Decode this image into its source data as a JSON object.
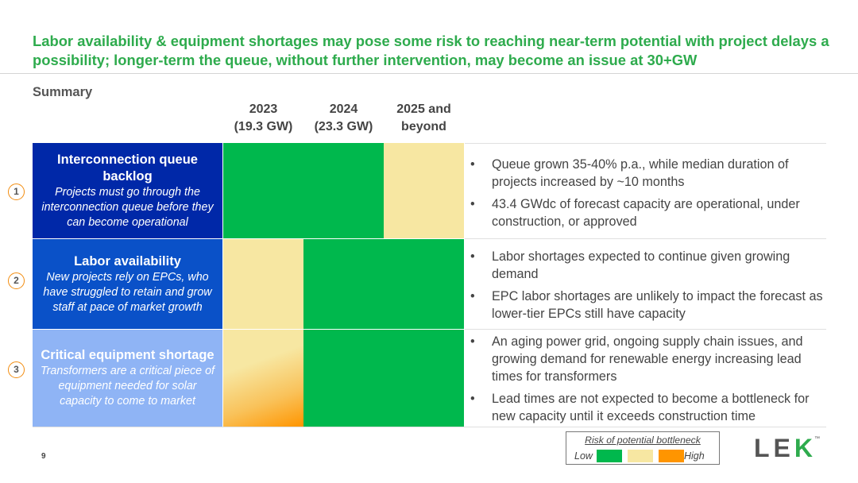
{
  "slide": {
    "title": "Labor availability & equipment shortages may pose some risk to reaching near-term potential with project delays a possibility; longer-term the queue, without further intervention, may become an issue at 30+GW",
    "summary_label": "Summary",
    "page_number": "9"
  },
  "columns": [
    {
      "year": "2023",
      "capacity": "(19.3 GW)"
    },
    {
      "year": "2024",
      "capacity": "(23.3 GW)"
    },
    {
      "year": "2025 and",
      "capacity": "beyond"
    }
  ],
  "rows": [
    {
      "number": "1",
      "title": "Interconnection queue backlog",
      "subtitle": "Projects must go through the interconnection queue before they can become operational",
      "label_color": "#0028a8",
      "risk": [
        "low",
        "low",
        "medium"
      ],
      "bullets": [
        "Queue grown 35-40% p.a., while median duration of projects increased by ~10 months",
        "43.4 GWdc of forecast capacity are operational, under construction, or approved"
      ]
    },
    {
      "number": "2",
      "title": "Labor availability",
      "subtitle": "New projects rely on EPCs, who have struggled to retain and grow staff at pace of market growth",
      "label_color": "#0a51c8",
      "risk": [
        "medium",
        "low",
        "low"
      ],
      "bullets": [
        "Labor shortages expected to continue given growing demand",
        "EPC labor shortages are unlikely to impact the forecast as lower-tier EPCs still have capacity"
      ]
    },
    {
      "number": "3",
      "title": "Critical equipment shortage",
      "subtitle": "Transformers are a critical piece of equipment needed for solar capacity to come to market",
      "label_color": "#8fb4f5",
      "risk": [
        "medium-high",
        "low",
        "low"
      ],
      "bullets": [
        "An aging power grid, ongoing supply chain issues, and growing demand for renewable energy increasing lead times for transformers",
        "Lead times are not expected to become a bottleneck for new capacity until it exceeds construction time"
      ]
    }
  ],
  "legend": {
    "title": "Risk of potential bottleneck",
    "low_label": "Low",
    "high_label": "High"
  },
  "colors": {
    "title_green": "#2eab4d",
    "risk_low": "#00b84d",
    "risk_medium": "#f7e7a2",
    "risk_high": "#ff9500",
    "badge_border": "#f28c0f",
    "logo_k_green": "#2eab4d"
  },
  "logo": {
    "text_l": "LE",
    "text_k": "K",
    "tm": "™"
  }
}
